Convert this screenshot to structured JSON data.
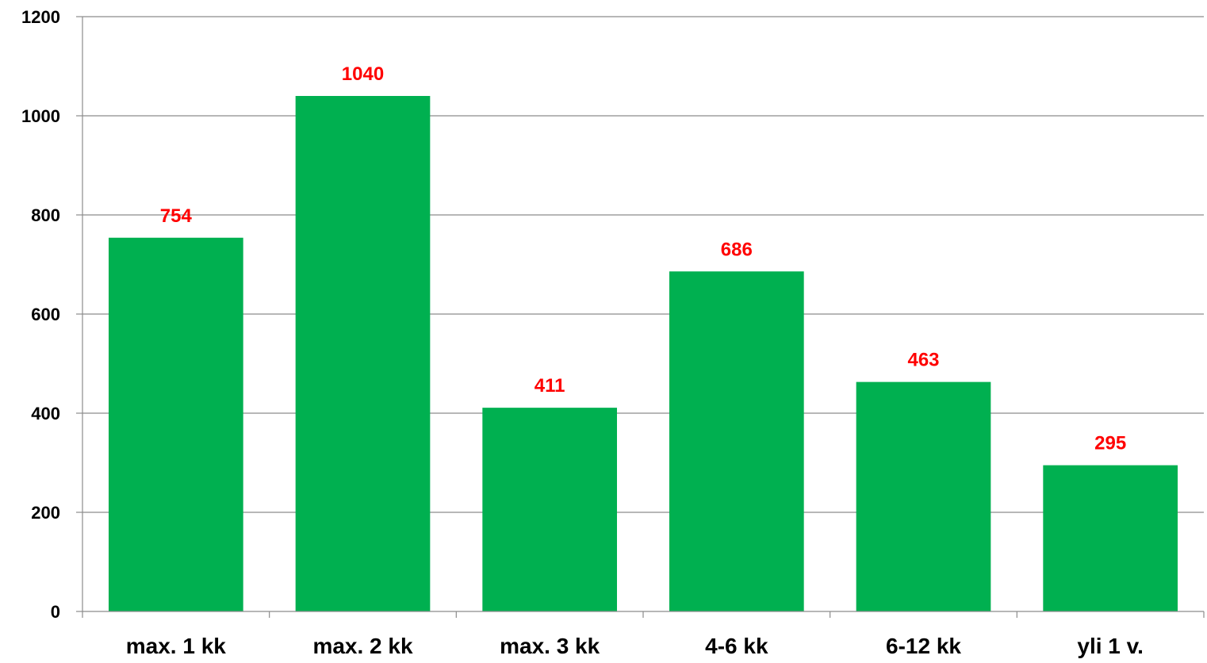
{
  "chart_data": {
    "type": "bar",
    "title": "",
    "xlabel": "",
    "ylabel": "",
    "categories": [
      "max. 1 kk",
      "max. 2 kk",
      "max. 3 kk",
      "4-6 kk",
      "6-12 kk",
      "yli 1 v."
    ],
    "values": [
      754,
      1040,
      411,
      686,
      463,
      295
    ],
    "ylim": [
      0,
      1200
    ],
    "yticks": [
      0,
      200,
      400,
      600,
      800,
      1000,
      1200
    ],
    "grid": true,
    "legend": "none",
    "bar_color": "#00b050",
    "label_color": "#ff0000"
  }
}
